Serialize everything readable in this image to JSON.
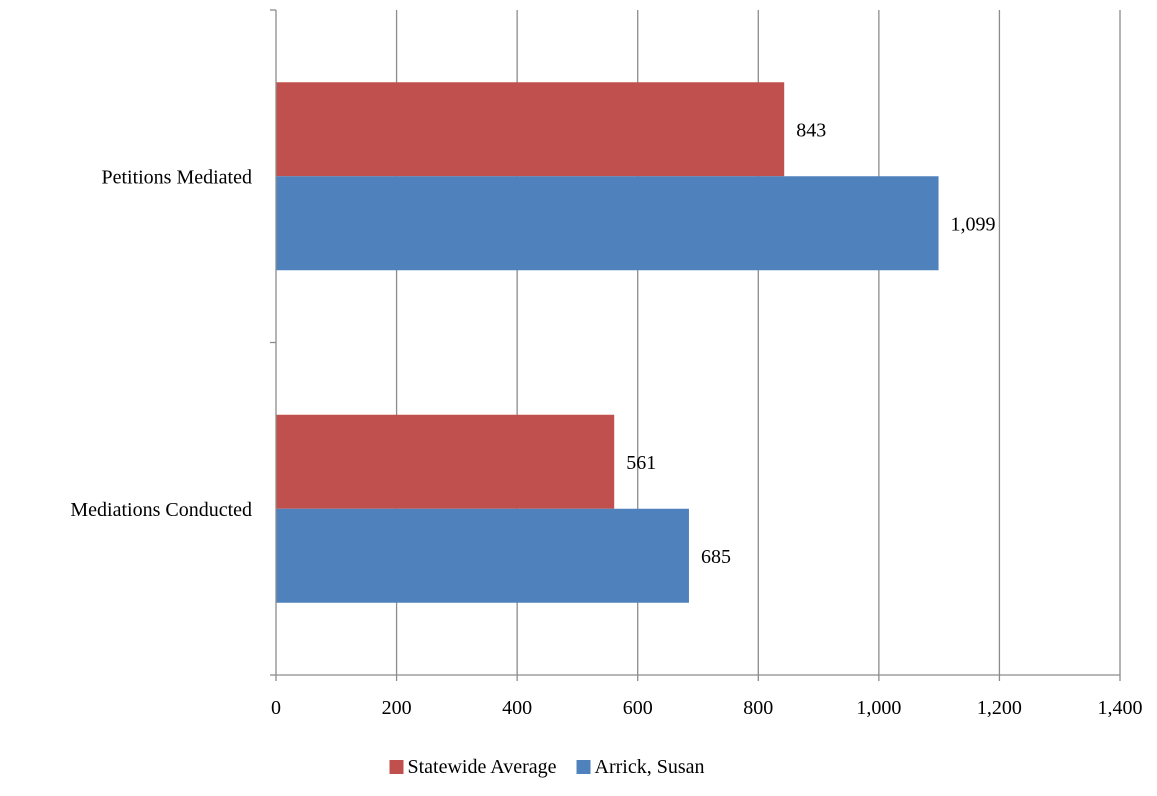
{
  "chart_data": {
    "type": "bar",
    "orientation": "horizontal",
    "title": "",
    "xlabel": "",
    "ylabel": "",
    "categories": [
      "Petitions Mediated",
      "Mediations Conducted"
    ],
    "series": [
      {
        "name": "Statewide Average",
        "color": "#C0504D",
        "values": [
          843,
          561
        ],
        "value_labels": [
          "843",
          "561"
        ]
      },
      {
        "name": "Arrick, Susan",
        "color": "#4F81BD",
        "values": [
          1099,
          685
        ],
        "value_labels": [
          "1,099",
          "685"
        ]
      }
    ],
    "xlim": [
      0,
      1400
    ],
    "x_ticks": [
      0,
      200,
      400,
      600,
      800,
      1000,
      1200,
      1400
    ],
    "x_tick_labels": [
      "0",
      "200",
      "400",
      "600",
      "800",
      "1,000",
      "1,200",
      "1,400"
    ],
    "grid": "vertical",
    "legend_position": "bottom"
  }
}
